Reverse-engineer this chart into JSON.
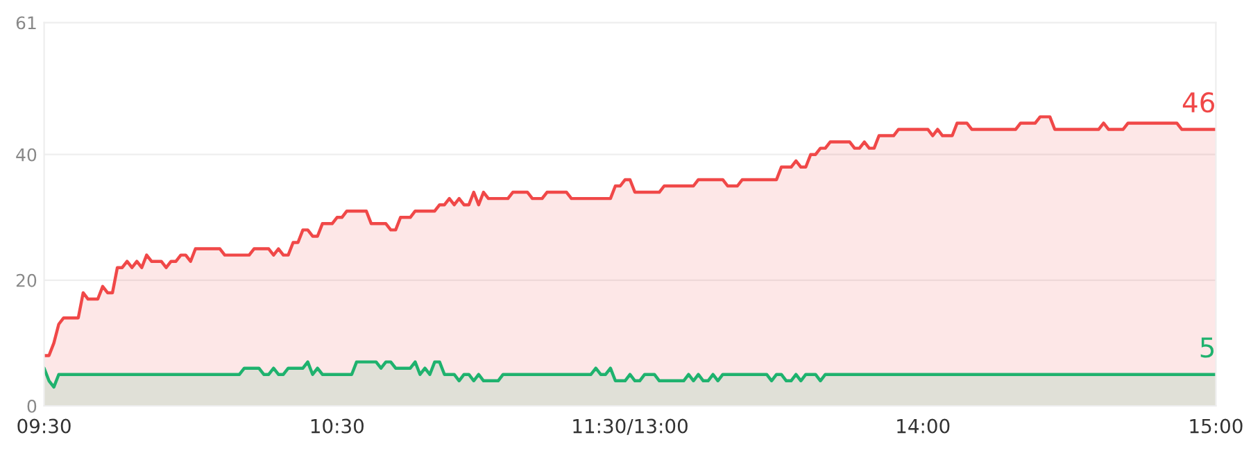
{
  "chart_data": {
    "type": "area",
    "ylim": [
      0,
      61
    ],
    "yticks": [
      0,
      20,
      40,
      61
    ],
    "grid": "y",
    "annotations": [
      "46",
      "5"
    ],
    "categories": [
      "09:30",
      null,
      null,
      null,
      null,
      null,
      null,
      null,
      null,
      null,
      null,
      null,
      null,
      null,
      null,
      null,
      null,
      null,
      null,
      null,
      null,
      null,
      null,
      null,
      null,
      null,
      null,
      null,
      null,
      null,
      null,
      null,
      null,
      null,
      null,
      null,
      null,
      null,
      null,
      null,
      null,
      null,
      null,
      null,
      null,
      null,
      null,
      null,
      null,
      null,
      null,
      null,
      null,
      null,
      null,
      null,
      null,
      null,
      null,
      null,
      "10:30",
      null,
      null,
      null,
      null,
      null,
      null,
      null,
      null,
      null,
      null,
      null,
      null,
      null,
      null,
      null,
      null,
      null,
      null,
      null,
      null,
      null,
      null,
      null,
      null,
      null,
      null,
      null,
      null,
      null,
      null,
      null,
      null,
      null,
      null,
      null,
      null,
      null,
      null,
      null,
      null,
      null,
      null,
      null,
      null,
      null,
      null,
      null,
      null,
      null,
      null,
      null,
      null,
      null,
      null,
      null,
      null,
      null,
      null,
      null,
      "11:30/13:00",
      null,
      null,
      null,
      null,
      null,
      null,
      null,
      null,
      null,
      null,
      null,
      null,
      null,
      null,
      null,
      null,
      null,
      null,
      null,
      null,
      null,
      null,
      null,
      null,
      null,
      null,
      null,
      null,
      null,
      null,
      null,
      null,
      null,
      null,
      null,
      null,
      null,
      null,
      null,
      null,
      null,
      null,
      null,
      null,
      null,
      null,
      null,
      null,
      null,
      null,
      null,
      null,
      null,
      null,
      null,
      null,
      null,
      null,
      null,
      "14:00",
      null,
      null,
      null,
      null,
      null,
      null,
      null,
      null,
      null,
      null,
      null,
      null,
      null,
      null,
      null,
      null,
      null,
      null,
      null,
      null,
      null,
      null,
      null,
      null,
      null,
      null,
      null,
      null,
      null,
      null,
      null,
      null,
      null,
      null,
      null,
      null,
      null,
      null,
      null,
      null,
      null,
      null,
      null,
      null,
      null,
      null,
      null,
      null,
      null,
      null,
      null,
      null,
      null,
      null,
      null,
      null,
      null,
      null,
      null,
      "15:00"
    ],
    "series": [
      {
        "color": "#f04848",
        "values": [
          8,
          8,
          10,
          13,
          14,
          14,
          14,
          14,
          18,
          17,
          17,
          17,
          19,
          18,
          18,
          22,
          22,
          23,
          22,
          23,
          22,
          24,
          23,
          23,
          23,
          22,
          23,
          23,
          24,
          24,
          23,
          25,
          25,
          25,
          25,
          25,
          25,
          24,
          24,
          24,
          24,
          24,
          24,
          25,
          25,
          25,
          25,
          24,
          25,
          24,
          24,
          26,
          26,
          28,
          28,
          27,
          27,
          29,
          29,
          29,
          30,
          30,
          31,
          31,
          31,
          31,
          31,
          29,
          29,
          29,
          29,
          28,
          28,
          30,
          30,
          30,
          31,
          31,
          31,
          31,
          31,
          32,
          32,
          33,
          32,
          33,
          32,
          32,
          34,
          32,
          34,
          33,
          33,
          33,
          33,
          33,
          34,
          34,
          34,
          34,
          33,
          33,
          33,
          34,
          34,
          34,
          34,
          34,
          33,
          33,
          33,
          33,
          33,
          33,
          33,
          33,
          33,
          35,
          35,
          36,
          36,
          34,
          34,
          34,
          34,
          34,
          34,
          35,
          35,
          35,
          35,
          35,
          35,
          35,
          36,
          36,
          36,
          36,
          36,
          36,
          35,
          35,
          35,
          36,
          36,
          36,
          36,
          36,
          36,
          36,
          36,
          38,
          38,
          38,
          39,
          38,
          38,
          40,
          40,
          41,
          41,
          42,
          42,
          42,
          42,
          42,
          41,
          41,
          42,
          41,
          41,
          43,
          43,
          43,
          43,
          44,
          44,
          44,
          44,
          44,
          44,
          44,
          43,
          44,
          43,
          43,
          43,
          45,
          45,
          45,
          44,
          44,
          44,
          44,
          44,
          44,
          44,
          44,
          44,
          44,
          45,
          45,
          45,
          45,
          46,
          46,
          46,
          44,
          44,
          44,
          44,
          44,
          44,
          44,
          44,
          44,
          44,
          45,
          44,
          44,
          44,
          44,
          45,
          45,
          45,
          45,
          45,
          45,
          45,
          45,
          45,
          45,
          45,
          44,
          44,
          44,
          44,
          44,
          44,
          44,
          44
        ]
      },
      {
        "color": "#1fb26e",
        "values": [
          6,
          4,
          3,
          5,
          5,
          5,
          5,
          5,
          5,
          5,
          5,
          5,
          5,
          5,
          5,
          5,
          5,
          5,
          5,
          5,
          5,
          5,
          5,
          5,
          5,
          5,
          5,
          5,
          5,
          5,
          5,
          5,
          5,
          5,
          5,
          5,
          5,
          5,
          5,
          5,
          5,
          6,
          6,
          6,
          6,
          5,
          5,
          6,
          5,
          5,
          6,
          6,
          6,
          6,
          7,
          5,
          6,
          5,
          5,
          5,
          5,
          5,
          5,
          5,
          7,
          7,
          7,
          7,
          7,
          6,
          7,
          7,
          6,
          6,
          6,
          6,
          7,
          5,
          6,
          5,
          7,
          7,
          5,
          5,
          5,
          4,
          5,
          5,
          4,
          5,
          4,
          4,
          4,
          4,
          5,
          5,
          5,
          5,
          5,
          5,
          5,
          5,
          5,
          5,
          5,
          5,
          5,
          5,
          5,
          5,
          5,
          5,
          5,
          6,
          5,
          5,
          6,
          4,
          4,
          4,
          5,
          4,
          4,
          5,
          5,
          5,
          4,
          4,
          4,
          4,
          4,
          4,
          5,
          4,
          5,
          4,
          4,
          5,
          4,
          5,
          5,
          5,
          5,
          5,
          5,
          5,
          5,
          5,
          5,
          4,
          5,
          5,
          4,
          4,
          5,
          4,
          5,
          5,
          5,
          4,
          5,
          5,
          5,
          5,
          5,
          5,
          5,
          5,
          5,
          5,
          5,
          5,
          5,
          5,
          5,
          5,
          5,
          5,
          5,
          5,
          5,
          5,
          5,
          5,
          5,
          5,
          5,
          5,
          5,
          5,
          5,
          5,
          5,
          5,
          5,
          5,
          5,
          5,
          5,
          5,
          5,
          5,
          5,
          5,
          5,
          5,
          5,
          5,
          5,
          5,
          5,
          5,
          5,
          5,
          5,
          5,
          5,
          5,
          5,
          5,
          5,
          5,
          5,
          5,
          5,
          5,
          5,
          5,
          5,
          5,
          5,
          5,
          5,
          5,
          5,
          5,
          5,
          5,
          5,
          5,
          5
        ]
      }
    ]
  }
}
